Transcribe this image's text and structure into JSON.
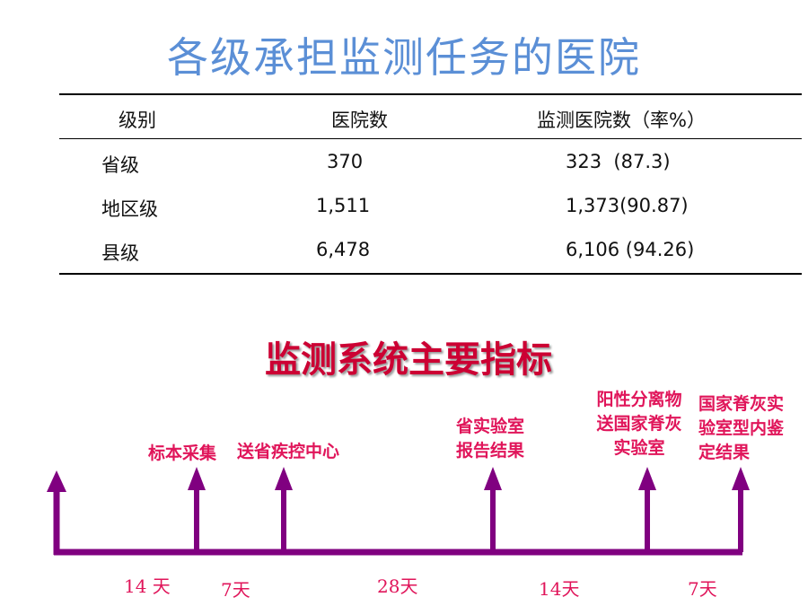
{
  "title": "各级承担监测任务的医院",
  "table": {
    "headers": [
      "级别",
      "医院数",
      "监测医院数（率%）"
    ],
    "rows": [
      [
        "省级",
        "370",
        "323  (87.3)"
      ],
      [
        "地区级",
        "1,511",
        "1,373(90.87)"
      ],
      [
        "县级",
        "6,478",
        "6,106 (94.26)"
      ]
    ]
  },
  "subtitle": "监测系统主要指标",
  "timeline": {
    "color": "#800080",
    "label_color": "#e0155a",
    "events": [
      {
        "label": "标本采集"
      },
      {
        "label": "送省疾控中心"
      },
      {
        "lines": [
          "省实验室",
          "报告结果"
        ]
      },
      {
        "lines": [
          "阳性分离物",
          "送国家脊灰",
          "实验室"
        ]
      },
      {
        "lines": [
          "国家脊灰实",
          "验室型内鉴",
          "定结果"
        ]
      }
    ],
    "durations": [
      "14 天",
      "7天",
      "28天",
      "14天",
      "7天"
    ]
  }
}
